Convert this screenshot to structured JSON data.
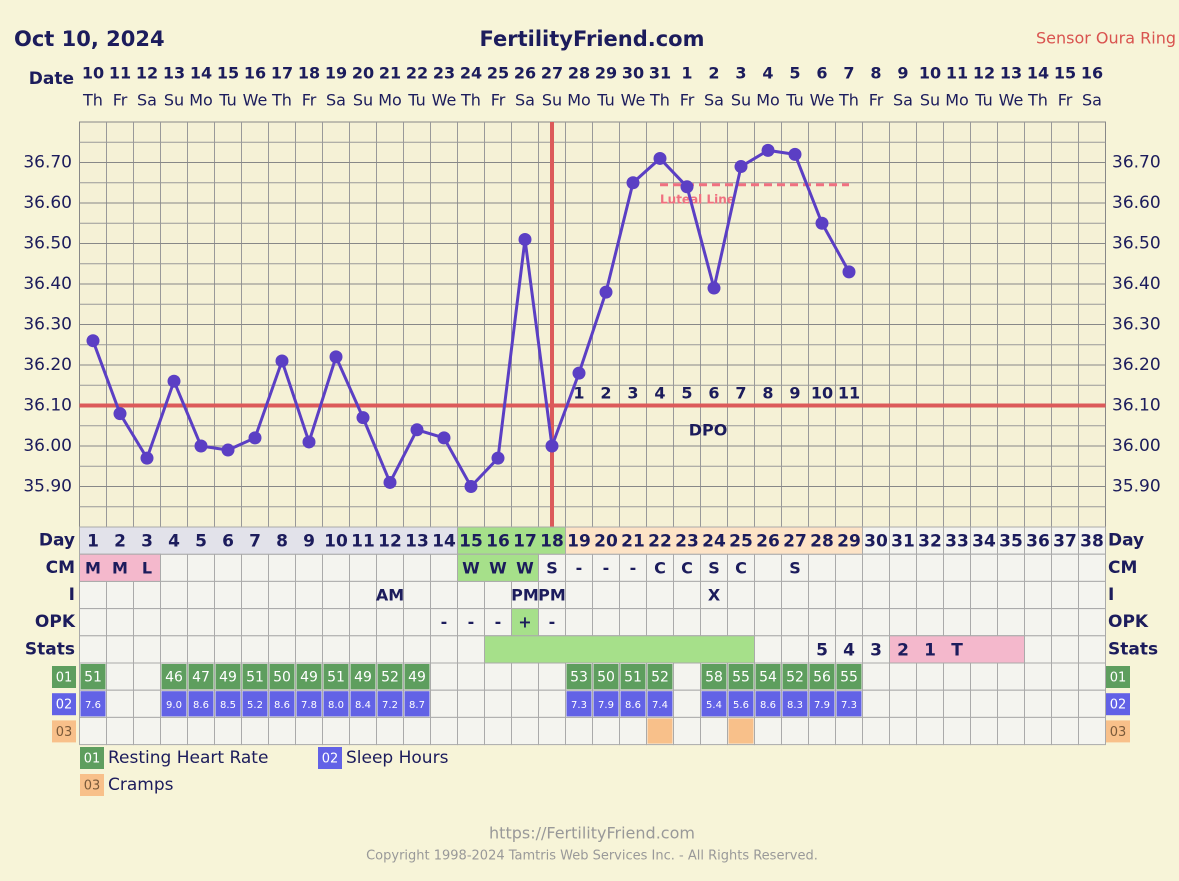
{
  "header": {
    "date": "Oct 10, 2024",
    "site": "FertilityFriend.com",
    "sensor": "Sensor Oura Ring"
  },
  "chart_data": {
    "type": "line",
    "row_labels": {
      "date": "Date",
      "day": "Day",
      "cm": "CM",
      "i": "I",
      "opk": "OPK",
      "stats": "Stats"
    },
    "dates": [
      10,
      11,
      12,
      13,
      14,
      15,
      16,
      17,
      18,
      19,
      20,
      21,
      22,
      23,
      24,
      25,
      26,
      27,
      28,
      29,
      30,
      31,
      1,
      2,
      3,
      4,
      5,
      6,
      7,
      8,
      9,
      10,
      11,
      12,
      13,
      14,
      15,
      16
    ],
    "weekdays": [
      "Th",
      "Fr",
      "Sa",
      "Su",
      "Mo",
      "Tu",
      "We",
      "Th",
      "Fr",
      "Sa",
      "Su",
      "Mo",
      "Tu",
      "We",
      "Th",
      "Fr",
      "Sa",
      "Su",
      "Mo",
      "Tu",
      "We",
      "Th",
      "Fr",
      "Sa",
      "Su",
      "Mo",
      "Tu",
      "We",
      "Th",
      "Fr",
      "Sa",
      "Su",
      "Mo",
      "Tu",
      "We",
      "Th",
      "Fr",
      "Sa"
    ],
    "cycle_days": [
      1,
      2,
      3,
      4,
      5,
      6,
      7,
      8,
      9,
      10,
      11,
      12,
      13,
      14,
      15,
      16,
      17,
      18,
      19,
      20,
      21,
      22,
      23,
      24,
      25,
      26,
      27,
      28,
      29,
      30,
      31,
      32,
      33,
      34,
      35,
      36,
      37,
      38
    ],
    "values": [
      36.26,
      36.08,
      35.97,
      36.16,
      36.0,
      35.99,
      36.02,
      36.21,
      36.01,
      36.22,
      36.07,
      35.91,
      36.04,
      36.02,
      35.9,
      35.97,
      36.51,
      36.0,
      36.18,
      36.38,
      36.65,
      36.71,
      36.64,
      36.39,
      36.69,
      36.73,
      36.72,
      36.55,
      36.43,
      null,
      null,
      null,
      null,
      null,
      null,
      null,
      null,
      null
    ],
    "color": "#5b3fc4",
    "ylim": [
      35.8,
      36.8
    ],
    "yticks": [
      {
        "value": 35.9,
        "label": "35.90"
      },
      {
        "value": 36.0,
        "label": "36.00"
      },
      {
        "value": 36.1,
        "label": "36.10"
      },
      {
        "value": 36.2,
        "label": "36.20"
      },
      {
        "value": 36.3,
        "label": "36.30"
      },
      {
        "value": 36.4,
        "label": "36.40"
      },
      {
        "value": 36.5,
        "label": "36.50"
      },
      {
        "value": 36.6,
        "label": "36.60"
      },
      {
        "value": 36.7,
        "label": "36.70"
      }
    ],
    "grid": true,
    "coverline": {
      "value": 36.1,
      "color": "#dc5a5a"
    },
    "ovulation_day": 18,
    "luteal_line": {
      "label": "Luteal Line",
      "value": 36.645,
      "from": 22,
      "to": 29,
      "color": "#f07080"
    },
    "dpo": {
      "label": "DPO",
      "values": [
        1,
        2,
        3,
        4,
        5,
        6,
        7,
        8,
        9,
        10,
        11
      ]
    },
    "day_highlights": [
      {
        "from": 1,
        "to": 14,
        "color": "#e2e2ea"
      },
      {
        "from": 15,
        "to": 18,
        "color": "#a6e08a"
      },
      {
        "from": 19,
        "to": 29,
        "color": "#fde3c6"
      }
    ],
    "cm": {
      "cells": [
        "M",
        "M",
        "L",
        null,
        null,
        null,
        null,
        null,
        null,
        null,
        null,
        null,
        null,
        null,
        "W",
        "W",
        "W",
        "S",
        "-",
        "-",
        "-",
        "C",
        "C",
        "S",
        "C",
        null,
        "S",
        null,
        null,
        null,
        null,
        null,
        null,
        null,
        null,
        null,
        null,
        null
      ],
      "highlights": [
        {
          "from": 1,
          "to": 3,
          "color": "#f4b8cc"
        },
        {
          "from": 15,
          "to": 17,
          "color": "#a6e08a"
        }
      ]
    },
    "intercourse": {
      "cells": [
        null,
        null,
        null,
        null,
        null,
        null,
        null,
        null,
        null,
        null,
        null,
        "AM",
        null,
        null,
        null,
        null,
        "PM",
        "PM",
        null,
        null,
        null,
        null,
        null,
        "X",
        null,
        null,
        null,
        null,
        null,
        null,
        null,
        null,
        null,
        null,
        null,
        null,
        null,
        null
      ]
    },
    "opk": {
      "cells": [
        null,
        null,
        null,
        null,
        null,
        null,
        null,
        null,
        null,
        null,
        null,
        null,
        null,
        "-",
        "-",
        "-",
        "+",
        "-",
        null,
        null,
        null,
        null,
        null,
        null,
        null,
        null,
        null,
        null,
        null,
        null,
        null,
        null,
        null,
        null,
        null,
        null,
        null,
        null
      ],
      "highlights": [
        {
          "from": 17,
          "to": 17,
          "color": "#a6e08a"
        }
      ]
    },
    "stats": {
      "cells": [
        null,
        null,
        null,
        null,
        null,
        null,
        null,
        null,
        null,
        null,
        null,
        null,
        null,
        null,
        null,
        null,
        null,
        null,
        null,
        null,
        null,
        null,
        null,
        null,
        null,
        null,
        null,
        "5",
        "4",
        "3",
        "2",
        "1",
        "T",
        null,
        null,
        null,
        null,
        null
      ],
      "highlights": [
        {
          "from": 16,
          "to": 25,
          "color": "#a6e08a"
        },
        {
          "from": 31,
          "to": 35,
          "color": "#f4b8cc"
        }
      ]
    },
    "resting_heart_rate": {
      "code": "01",
      "name": "Resting Heart Rate",
      "color": "#5e9e5e",
      "values": [
        51,
        null,
        null,
        46,
        47,
        49,
        51,
        50,
        49,
        51,
        49,
        52,
        49,
        null,
        null,
        null,
        null,
        null,
        53,
        50,
        51,
        52,
        null,
        58,
        55,
        54,
        52,
        56,
        55,
        null,
        null,
        null,
        null,
        null,
        null,
        null,
        null,
        null
      ]
    },
    "sleep_hours": {
      "code": "02",
      "name": "Sleep Hours",
      "color": "#6262e6",
      "values": [
        7.6,
        null,
        null,
        9.0,
        8.6,
        8.5,
        5.2,
        8.6,
        7.8,
        8.0,
        8.4,
        7.2,
        8.7,
        null,
        null,
        null,
        null,
        null,
        7.3,
        7.9,
        8.6,
        7.4,
        null,
        5.4,
        5.6,
        8.6,
        8.3,
        7.9,
        7.3,
        null,
        null,
        null,
        null,
        null,
        null,
        null,
        null,
        null
      ],
      "value_labels": [
        "7.6",
        null,
        null,
        "9.0",
        "8.6",
        "8.5",
        "5.2",
        "8.6",
        "7.8",
        "8.0",
        "8.4",
        "7.2",
        "8.7",
        null,
        null,
        null,
        null,
        null,
        "7.3",
        "7.9",
        "8.6",
        "7.4",
        null,
        "5.4",
        "5.6",
        "8.6",
        "8.3",
        "7.9",
        "7.3",
        null,
        null,
        null,
        null,
        null,
        null,
        null,
        null,
        null
      ]
    },
    "cramps": {
      "code": "03",
      "name": "Cramps",
      "color": "#f8c08a",
      "days": [
        22,
        25
      ]
    }
  },
  "footer": {
    "url": "https://FertilityFriend.com",
    "copyright": "Copyright 1998-2024 Tamtris Web Services Inc. - All Rights Reserved."
  }
}
